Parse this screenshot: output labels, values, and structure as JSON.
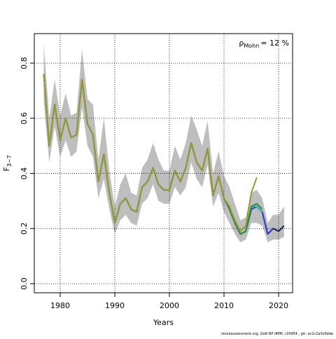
{
  "chart_data": {
    "type": "line",
    "ylabel": "F",
    "ylabel_subscript": "3−7",
    "xlabel": "Years",
    "annotation": {
      "symbol": "ρ",
      "subscript": "Mohn",
      "text": "= 12 %"
    },
    "footer": "stockassessment.org, GoR BP dMM, r16954 , git: ec2c2a0c6dde",
    "x": [
      1977,
      1978,
      1979,
      1980,
      1981,
      1982,
      1983,
      1984,
      1985,
      1986,
      1987,
      1988,
      1989,
      1990,
      1991,
      1992,
      1993,
      1994,
      1995,
      1996,
      1997,
      1998,
      1999,
      2000,
      2001,
      2002,
      2003,
      2004,
      2005,
      2006,
      2007,
      2008,
      2009,
      2010,
      2011,
      2012,
      2013,
      2014,
      2015,
      2016,
      2017,
      2018,
      2019,
      2020,
      2021
    ],
    "band": {
      "color": "#bebebe",
      "upper": [
        0.87,
        0.6,
        0.74,
        0.61,
        0.69,
        0.61,
        0.62,
        0.85,
        0.67,
        0.65,
        0.45,
        0.6,
        0.41,
        0.28,
        0.36,
        0.4,
        0.33,
        0.32,
        0.42,
        0.45,
        0.51,
        0.45,
        0.41,
        0.41,
        0.5,
        0.45,
        0.51,
        0.61,
        0.56,
        0.5,
        0.59,
        0.4,
        0.48,
        0.39,
        0.35,
        0.29,
        0.23,
        0.24,
        0.33,
        0.34,
        0.31,
        0.22,
        0.25,
        0.25,
        0.28
      ],
      "lower": [
        0.66,
        0.44,
        0.57,
        0.46,
        0.52,
        0.46,
        0.48,
        0.64,
        0.5,
        0.46,
        0.31,
        0.38,
        0.27,
        0.18,
        0.23,
        0.25,
        0.22,
        0.21,
        0.29,
        0.31,
        0.36,
        0.3,
        0.29,
        0.29,
        0.35,
        0.32,
        0.35,
        0.44,
        0.38,
        0.35,
        0.43,
        0.28,
        0.33,
        0.26,
        0.22,
        0.18,
        0.15,
        0.16,
        0.22,
        0.22,
        0.21,
        0.15,
        0.16,
        0.16,
        0.17
      ]
    },
    "series": [
      {
        "color": "#1f1f5c",
        "values": [
          0.76,
          0.5,
          0.65,
          0.52,
          0.6,
          0.53,
          0.54,
          0.74,
          0.58,
          0.54,
          0.37,
          0.47,
          0.33,
          0.22,
          0.29,
          0.31,
          0.27,
          0.26,
          0.35,
          0.37,
          0.42,
          0.36,
          0.34,
          0.34,
          0.41,
          0.37,
          0.42,
          0.51,
          0.44,
          0.41,
          0.49,
          0.32,
          0.39,
          0.31,
          0.27,
          0.22,
          0.18,
          0.19,
          0.27,
          0.28,
          0.26,
          0.18,
          0.2,
          0.19,
          0.21
        ]
      },
      {
        "color": "#2b3fd6",
        "values": [
          0.76,
          0.5,
          0.65,
          0.52,
          0.6,
          0.53,
          0.54,
          0.74,
          0.58,
          0.54,
          0.37,
          0.47,
          0.33,
          0.22,
          0.29,
          0.31,
          0.27,
          0.26,
          0.35,
          0.37,
          0.42,
          0.36,
          0.34,
          0.34,
          0.41,
          0.37,
          0.42,
          0.51,
          0.44,
          0.41,
          0.49,
          0.32,
          0.39,
          0.31,
          0.27,
          0.22,
          0.18,
          0.19,
          0.27,
          0.28,
          0.26,
          0.18,
          0.2,
          null,
          null
        ]
      },
      {
        "color": "#33b8c0",
        "values": [
          0.76,
          0.5,
          0.65,
          0.52,
          0.6,
          0.53,
          0.54,
          0.74,
          0.58,
          0.54,
          0.37,
          0.47,
          0.33,
          0.22,
          0.29,
          0.31,
          0.27,
          0.26,
          0.35,
          0.37,
          0.42,
          0.36,
          0.34,
          0.34,
          0.41,
          0.37,
          0.42,
          0.51,
          0.44,
          0.41,
          0.49,
          0.32,
          0.39,
          0.31,
          0.27,
          0.22,
          0.18,
          0.19,
          0.28,
          0.28,
          0.26,
          null,
          null,
          null,
          null
        ]
      },
      {
        "color": "#2e8b3a",
        "values": [
          0.76,
          0.5,
          0.65,
          0.52,
          0.6,
          0.53,
          0.54,
          0.74,
          0.58,
          0.54,
          0.37,
          0.47,
          0.33,
          0.22,
          0.29,
          0.31,
          0.27,
          0.26,
          0.35,
          0.37,
          0.42,
          0.36,
          0.34,
          0.34,
          0.41,
          0.37,
          0.42,
          0.51,
          0.44,
          0.41,
          0.49,
          0.32,
          0.39,
          0.31,
          0.27,
          0.22,
          0.18,
          0.19,
          0.28,
          0.29,
          0.27,
          null,
          null,
          null,
          null
        ]
      },
      {
        "color": "#9a9a2e",
        "values": [
          0.76,
          0.5,
          0.65,
          0.52,
          0.6,
          0.53,
          0.54,
          0.74,
          0.58,
          0.54,
          0.37,
          0.47,
          0.33,
          0.22,
          0.29,
          0.31,
          0.27,
          0.26,
          0.35,
          0.37,
          0.42,
          0.36,
          0.34,
          0.34,
          0.41,
          0.37,
          0.42,
          0.51,
          0.44,
          0.41,
          0.49,
          0.32,
          0.39,
          0.31,
          0.28,
          0.23,
          0.19,
          0.21,
          0.33,
          0.385,
          null,
          null,
          null,
          null,
          null
        ]
      }
    ],
    "xlim": [
      1975.26,
      2022.56
    ],
    "xticks": [
      1980,
      1990,
      2000,
      2010,
      2020
    ],
    "ylim": [
      -0.033,
      0.907
    ],
    "yticks": [
      {
        "value": 0,
        "label": "0.0"
      },
      {
        "value": 0.2,
        "label": "0.2"
      },
      {
        "value": 0.4,
        "label": "0.4"
      },
      {
        "value": 0.6,
        "label": "0.6"
      },
      {
        "value": 0.8,
        "label": "0.8"
      }
    ],
    "grid": true
  }
}
